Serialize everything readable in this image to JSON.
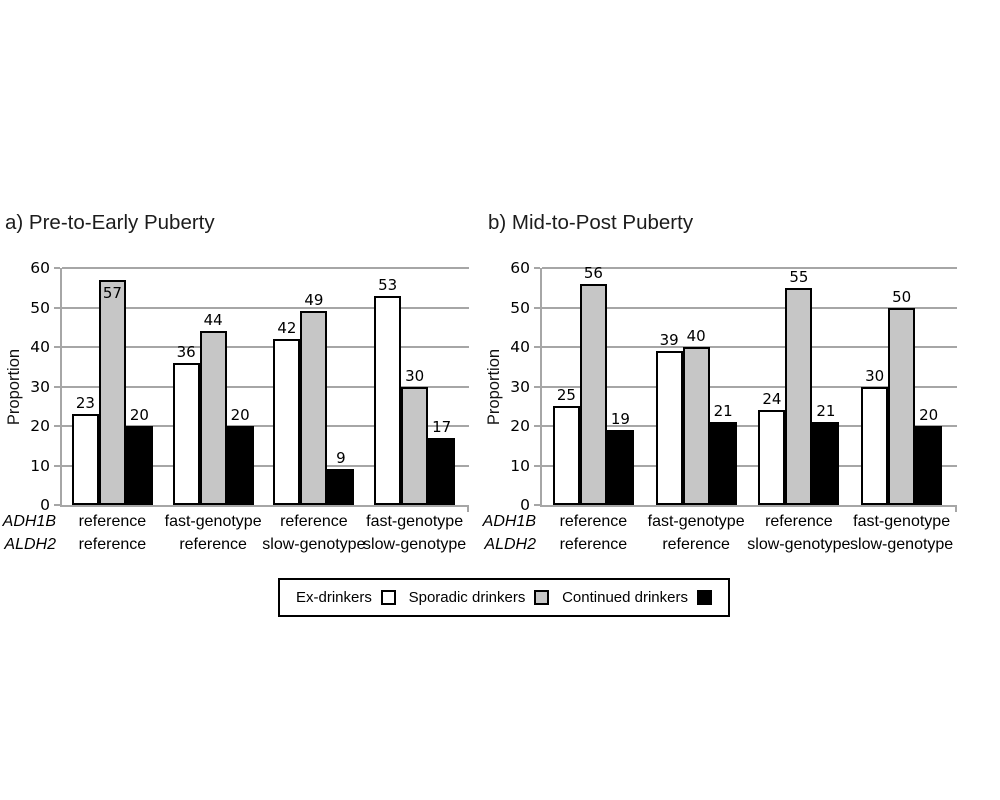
{
  "figure": {
    "background": "#ffffff"
  },
  "colors": {
    "grid": "#a6a6a6",
    "bar_border": "#000000",
    "bar_white": "#ffffff",
    "bar_gray": "#c6c6c6",
    "bar_black": "#000000",
    "text": "#000000"
  },
  "legend": {
    "items": [
      {
        "label": "Ex-drinkers",
        "swatch": "#ffffff"
      },
      {
        "label": "Sporadic drinkers",
        "swatch": "#c6c6c6"
      },
      {
        "label": "Continued drinkers",
        "swatch": "#000000"
      }
    ]
  },
  "chart_data": [
    {
      "type": "bar",
      "title": "a) Pre-to-Early Puberty",
      "ylabel": "Proportion",
      "ylim": [
        0,
        60
      ],
      "yticks": [
        0,
        10,
        20,
        30,
        40,
        50,
        60
      ],
      "grid": true,
      "legend_position": "bottom-shared",
      "gene_row_labels": [
        "ADH1B",
        "ALDH2"
      ],
      "categories": [
        [
          "reference",
          "reference"
        ],
        [
          "fast-genotype",
          "reference"
        ],
        [
          "reference",
          "slow-genotype"
        ],
        [
          "fast-genotype",
          "slow-genotype"
        ]
      ],
      "series": [
        {
          "name": "Ex-drinkers",
          "fill": "#ffffff",
          "values": [
            23,
            36,
            42,
            53
          ]
        },
        {
          "name": "Sporadic drinkers",
          "fill": "#c6c6c6",
          "values": [
            57,
            44,
            49,
            30
          ],
          "label_inside": [
            true,
            false,
            false,
            false
          ]
        },
        {
          "name": "Continued drinkers",
          "fill": "#000000",
          "values": [
            20,
            20,
            9,
            17
          ]
        }
      ]
    },
    {
      "type": "bar",
      "title": "b) Mid-to-Post Puberty",
      "ylabel": "Proportion",
      "ylim": [
        0,
        60
      ],
      "yticks": [
        0,
        10,
        20,
        30,
        40,
        50,
        60
      ],
      "grid": true,
      "legend_position": "bottom-shared",
      "gene_row_labels": [
        "ADH1B",
        "ALDH2"
      ],
      "categories": [
        [
          "reference",
          "reference"
        ],
        [
          "fast-genotype",
          "reference"
        ],
        [
          "reference",
          "slow-genotype"
        ],
        [
          "fast-genotype",
          "slow-genotype"
        ]
      ],
      "series": [
        {
          "name": "Ex-drinkers",
          "fill": "#ffffff",
          "values": [
            25,
            39,
            24,
            30
          ]
        },
        {
          "name": "Sporadic drinkers",
          "fill": "#c6c6c6",
          "values": [
            56,
            40,
            55,
            50
          ]
        },
        {
          "name": "Continued drinkers",
          "fill": "#000000",
          "values": [
            19,
            21,
            21,
            20
          ]
        }
      ]
    }
  ]
}
